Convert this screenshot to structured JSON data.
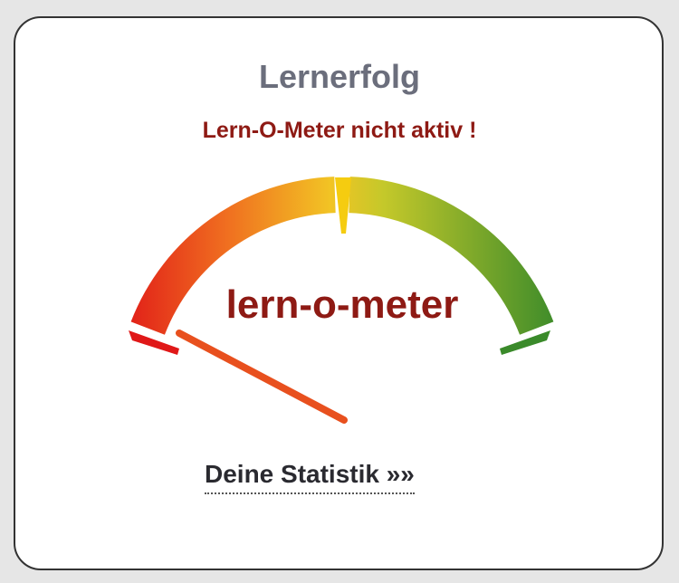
{
  "widget": {
    "title": "Lernerfolg",
    "status": "Lern-O-Meter nicht aktiv !",
    "gauge": {
      "logo_text": "lern-o-meter",
      "colors": [
        "#e01818",
        "#f07020",
        "#f2c424",
        "#c4c82a",
        "#3a8a2a"
      ],
      "needle_color": "#e8501e",
      "needle_level_percent": 0
    },
    "statistics_link": "Deine Statistik »»"
  }
}
